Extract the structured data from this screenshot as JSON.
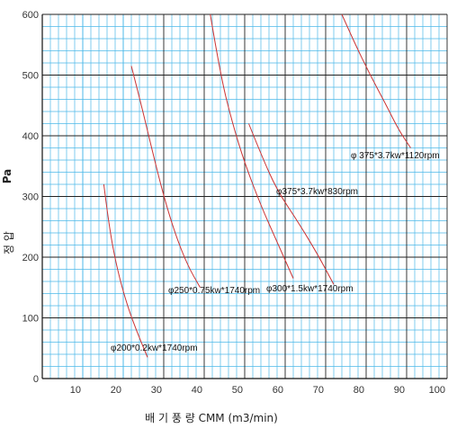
{
  "chart_data": {
    "type": "line",
    "xlabel": "배 기 풍 량   CMM (m3/min)",
    "ylabel_korean": "정 압",
    "ylabel_unit": "Pa",
    "xlim": [
      0,
      100
    ],
    "ylim": [
      0,
      600
    ],
    "x_ticks": [
      "10",
      "20",
      "30",
      "40",
      "50",
      "60",
      "70",
      "80",
      "90",
      "100"
    ],
    "y_ticks": [
      "0",
      "100",
      "200",
      "300",
      "400",
      "500",
      "600"
    ],
    "x_tick_values": [
      10,
      20,
      30,
      40,
      50,
      60,
      70,
      80,
      90,
      100
    ],
    "y_tick_values": [
      0,
      100,
      200,
      300,
      400,
      500,
      600
    ],
    "grid": true,
    "series": [
      {
        "name": "φ200*0.2kw*1740rpm",
        "points": [
          [
            15.2,
            320
          ],
          [
            16.5,
            250
          ],
          [
            18.5,
            180
          ],
          [
            21,
            120
          ],
          [
            23.5,
            75
          ],
          [
            26,
            35
          ]
        ]
      },
      {
        "name": "φ250*0.75kw*1740rpm",
        "points": [
          [
            22,
            515
          ],
          [
            24.5,
            450
          ],
          [
            27,
            380
          ],
          [
            30,
            300
          ],
          [
            33,
            235
          ],
          [
            36,
            185
          ],
          [
            39,
            150
          ]
        ]
      },
      {
        "name": "φ300*1.5kw*1740rpm",
        "points": [
          [
            41.5,
            600
          ],
          [
            44,
            500
          ],
          [
            47,
            420
          ],
          [
            50,
            355
          ],
          [
            54,
            285
          ],
          [
            58,
            225
          ],
          [
            62,
            165
          ]
        ]
      },
      {
        "name": "φ375*3.7kw*830rpm",
        "points": [
          [
            51,
            420
          ],
          [
            54,
            370
          ],
          [
            58,
            310
          ],
          [
            63,
            260
          ],
          [
            68,
            205
          ],
          [
            72,
            155
          ]
        ]
      },
      {
        "name": "φ 375*3.7kw*1120rpm",
        "points": [
          [
            74,
            600
          ],
          [
            77,
            555
          ],
          [
            81,
            500
          ],
          [
            85,
            450
          ],
          [
            88,
            410
          ],
          [
            91,
            380
          ]
        ]
      }
    ],
    "line_color": "#cc3333",
    "grid_color": "#4db8e8",
    "major_grid_color": "#222222"
  }
}
